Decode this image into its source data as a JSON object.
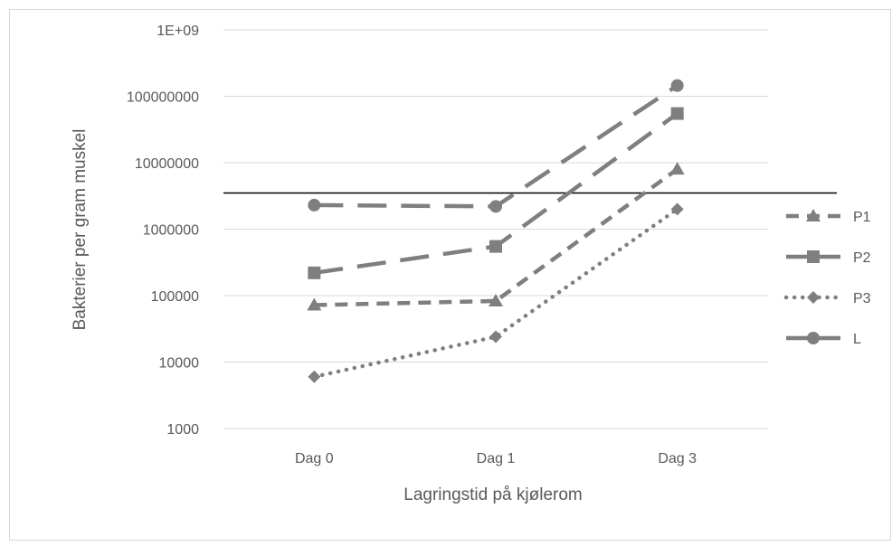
{
  "chart_data": {
    "type": "line",
    "title": "",
    "xlabel": "Lagringstid på kjølerom",
    "ylabel": "Bakterier per gram muskel",
    "y_scale": "log",
    "ylim": [
      1000,
      1000000000
    ],
    "y_ticks": [
      {
        "value": 1000,
        "label": "1000"
      },
      {
        "value": 10000,
        "label": "10000"
      },
      {
        "value": 100000,
        "label": "100000"
      },
      {
        "value": 1000000,
        "label": "1000000"
      },
      {
        "value": 10000000,
        "label": "10000000"
      },
      {
        "value": 100000000,
        "label": "100000000"
      },
      {
        "value": 1000000000,
        "label": "1E+09"
      }
    ],
    "categories": [
      "Dag 0",
      "Dag 1",
      "Dag 3"
    ],
    "reference_line": {
      "value": 3500000,
      "color": "#000000"
    },
    "grid": true,
    "legend_position": "right",
    "series": [
      {
        "name": "P1",
        "values": [
          72000,
          83000,
          8000000
        ],
        "color": "#7f7f7f",
        "marker": "triangle",
        "dash": "short-dash"
      },
      {
        "name": "P2",
        "values": [
          220000,
          550000,
          55000000
        ],
        "color": "#7f7f7f",
        "marker": "square",
        "dash": "long-dash"
      },
      {
        "name": "P3",
        "values": [
          6000,
          24000,
          2000000
        ],
        "color": "#7f7f7f",
        "marker": "diamond",
        "dash": "dotted"
      },
      {
        "name": "L",
        "values": [
          2300000,
          2200000,
          145000000
        ],
        "color": "#7f7f7f",
        "marker": "circle",
        "dash": "long-dash"
      }
    ]
  }
}
